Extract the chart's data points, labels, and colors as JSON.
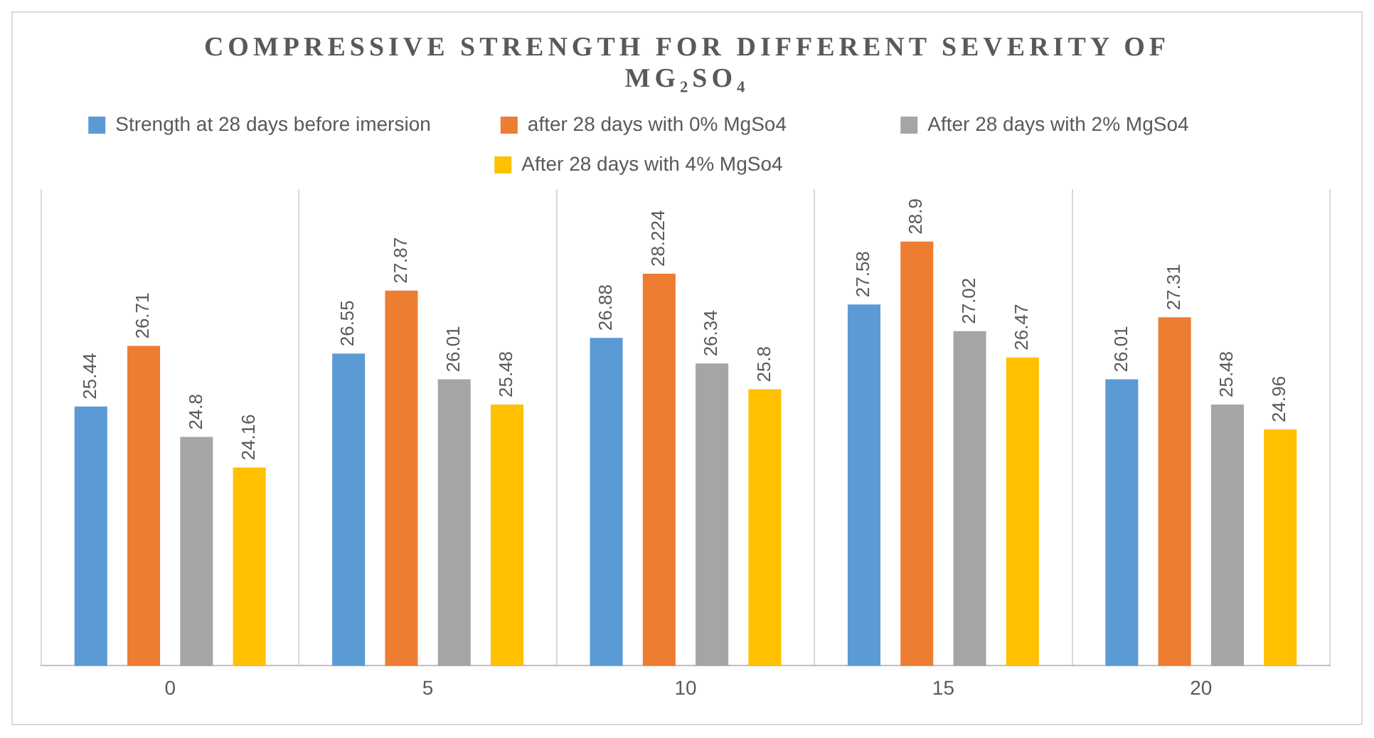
{
  "chart_data": {
    "type": "bar",
    "title": "COMPRESSIVE STRENGTH FOR DIFFERENT SEVERITY OF MG₂SO₄",
    "categories": [
      "0",
      "5",
      "10",
      "15",
      "20"
    ],
    "series": [
      {
        "name": "Strength at 28 days before imersion",
        "color": "#5b9bd5",
        "values": [
          25.44,
          26.55,
          26.88,
          27.58,
          26.01
        ]
      },
      {
        "name": "after 28 days with 0% MgSo4",
        "color": "#ed7d31",
        "values": [
          26.71,
          27.87,
          28.224,
          28.9,
          27.31
        ]
      },
      {
        "name": "After 28 days with 2% MgSo4",
        "color": "#a5a5a5",
        "values": [
          24.8,
          26.01,
          26.34,
          27.02,
          25.48
        ]
      },
      {
        "name": "After 28 days with 4% MgSo4",
        "color": "#ffc000",
        "values": [
          24.16,
          25.48,
          25.8,
          26.47,
          24.96
        ]
      }
    ],
    "ylim": [
      20,
      30
    ],
    "tick_labels": "x",
    "grid": "x",
    "legend": "top",
    "data_labels": true
  }
}
